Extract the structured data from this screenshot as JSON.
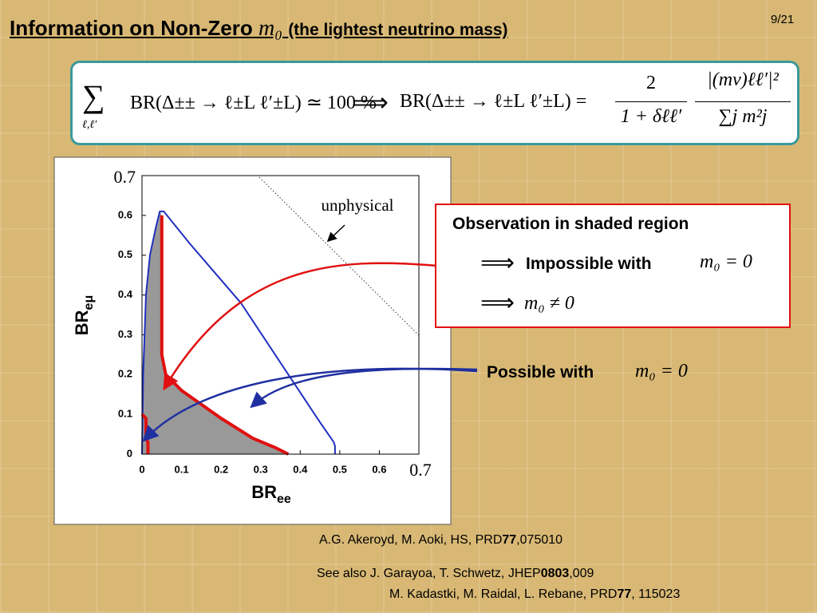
{
  "slide": {
    "title": "Information on Non-Zero",
    "title_math": "m₀",
    "title_rest": "(the lightest neutrino mass)",
    "page": "9/21",
    "formula": {
      "sum": "∑",
      "sum_sub": "ℓ,ℓ′",
      "left": "BR(Δ±± → ℓ±L ℓ′±L) ≃ 100 %",
      "implies": "⟹",
      "right": "BR(Δ±± → ℓ±L ℓ′±L) =",
      "frac1_num": "2",
      "frac1_den": "1 + δℓℓ′",
      "frac2_num": "|(mν)ℓℓ′|²",
      "frac2_den": "∑j m²j"
    },
    "box": {
      "heading": "Observation in shaded region",
      "arrow1": "⟹",
      "impossible": "Impossible with",
      "impossible_math": "m₀ = 0",
      "arrow2": "⟹",
      "nonzero_math": "m₀ ≠ 0"
    },
    "possible": "Possible with",
    "possible_math": "m₀ = 0",
    "refs": [
      {
        "pre": "A.G. Akeroyd, M. Aoki, HS, PRD",
        "bold": "77",
        "post": ",075010"
      },
      {
        "pre": "See also J. Garayoa, T. Schwetz, JHEP",
        "bold": "0803",
        "post": ",009"
      },
      {
        "pre": "M. Kadastki, M. Raidal, L. Rebane, PRD",
        "bold": "77",
        "post": ", 115023"
      }
    ]
  },
  "chart_data": {
    "type": "line",
    "xlabel": {
      "text": "BR",
      "sub": "ee"
    },
    "ylabel": {
      "text": "BR",
      "sub": "eμ"
    },
    "annotation": "unphysical",
    "xlim": [
      0,
      0.7
    ],
    "ylim": [
      0,
      0.7
    ],
    "xticks": [
      0,
      0.1,
      0.2,
      0.3,
      0.4,
      0.5,
      0.6,
      0.7
    ],
    "yticks": [
      0,
      0.1,
      0.2,
      0.3,
      0.4,
      0.5,
      0.6,
      0.7
    ],
    "series": [
      {
        "color": "#999999",
        "fill": true,
        "x": [
          0,
          0,
          0.01,
          0.02,
          0.035,
          0.045,
          0.05,
          0.05,
          0.05,
          0.06,
          0.1,
          0.2,
          0.28,
          0.34,
          0.37
        ],
        "values": [
          0,
          0.2,
          0.4,
          0.5,
          0.57,
          0.61,
          0.6,
          0.45,
          0.25,
          0.2,
          0.16,
          0.09,
          0.04,
          0.015,
          0
        ]
      },
      {
        "color": "#2030c0",
        "width": 2,
        "x": [
          0,
          0.003,
          0.01,
          0.02,
          0.035,
          0.045,
          0.055,
          0.12,
          0.25,
          0.37,
          0.45,
          0.485,
          0.488,
          0.488
        ],
        "values": [
          0,
          0.2,
          0.4,
          0.5,
          0.57,
          0.61,
          0.61,
          0.53,
          0.38,
          0.2,
          0.08,
          0.03,
          0.02,
          0
        ]
      },
      {
        "color": "#e01010",
        "width": 4,
        "x": [
          0.05,
          0.05,
          0.05,
          0.06,
          0.1,
          0.2,
          0.28,
          0.34,
          0.37
        ],
        "values": [
          0.6,
          0.45,
          0.25,
          0.2,
          0.16,
          0.09,
          0.04,
          0.015,
          0
        ]
      },
      {
        "color": "#e01010",
        "width": 4,
        "x": [
          0,
          0.01,
          0.01,
          0.015,
          0.015
        ],
        "values": [
          0.1,
          0.09,
          0.04,
          0.03,
          0
        ]
      }
    ]
  }
}
